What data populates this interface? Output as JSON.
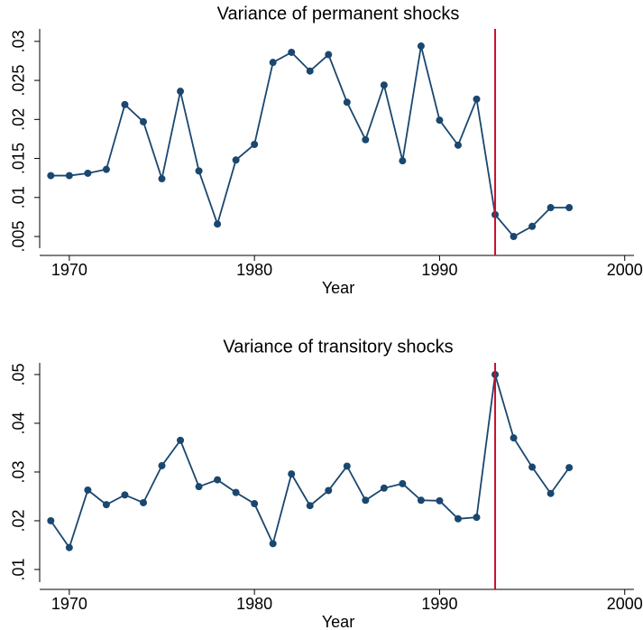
{
  "chart_data": [
    {
      "type": "line",
      "title": "Variance of permanent shocks",
      "xlabel": "Year",
      "xlim": [
        1968.4,
        2000.5
      ],
      "xticks": [
        1970,
        1980,
        1990,
        2000
      ],
      "ylim": [
        0.0035,
        0.0316
      ],
      "yticks": [
        {
          "value": 0.005,
          "label": ".005"
        },
        {
          "value": 0.01,
          "label": ".01"
        },
        {
          "value": 0.015,
          "label": ".015"
        },
        {
          "value": 0.02,
          "label": ".02"
        },
        {
          "value": 0.025,
          "label": ".025"
        },
        {
          "value": 0.03,
          "label": ".03"
        }
      ],
      "vline": 1993,
      "vline_color": "#c8102e",
      "series": [
        {
          "color": "#1a476f",
          "x": [
            1969,
            1970,
            1971,
            1972,
            1973,
            1974,
            1975,
            1976,
            1977,
            1978,
            1979,
            1980,
            1981,
            1982,
            1983,
            1984,
            1985,
            1986,
            1987,
            1988,
            1989,
            1990,
            1991,
            1992,
            1993,
            1994,
            1995,
            1996,
            1997
          ],
          "values": [
            0.0128,
            0.0128,
            0.0131,
            0.0136,
            0.0219,
            0.0197,
            0.0124,
            0.0236,
            0.0134,
            0.0066,
            0.0148,
            0.0168,
            0.0273,
            0.0286,
            0.0262,
            0.0283,
            0.0222,
            0.0174,
            0.0244,
            0.0147,
            0.0294,
            0.0199,
            0.0167,
            0.0226,
            0.0078,
            0.005,
            0.0063,
            0.0087,
            0.0087
          ]
        }
      ]
    },
    {
      "type": "line",
      "title": "Variance of transitory shocks",
      "xlabel": "Year",
      "xlim": [
        1968.4,
        2000.5
      ],
      "xticks": [
        1970,
        1980,
        1990,
        2000
      ],
      "ylim": [
        0.0074,
        0.0524
      ],
      "yticks": [
        {
          "value": 0.01,
          "label": ".01"
        },
        {
          "value": 0.02,
          "label": ".02"
        },
        {
          "value": 0.03,
          "label": ".03"
        },
        {
          "value": 0.04,
          "label": ".04"
        },
        {
          "value": 0.05,
          "label": ".05"
        }
      ],
      "vline": 1993,
      "vline_color": "#c8102e",
      "series": [
        {
          "color": "#1a476f",
          "x": [
            1969,
            1970,
            1971,
            1972,
            1973,
            1974,
            1975,
            1976,
            1977,
            1978,
            1979,
            1980,
            1981,
            1982,
            1983,
            1984,
            1985,
            1986,
            1987,
            1988,
            1989,
            1990,
            1991,
            1992,
            1993,
            1994,
            1995,
            1996,
            1997
          ],
          "values": [
            0.02,
            0.0145,
            0.0263,
            0.0233,
            0.0253,
            0.0237,
            0.0313,
            0.0365,
            0.027,
            0.0284,
            0.0258,
            0.0235,
            0.0153,
            0.0296,
            0.0231,
            0.0262,
            0.0312,
            0.0242,
            0.0267,
            0.0276,
            0.0242,
            0.0241,
            0.0204,
            0.0207,
            0.05,
            0.037,
            0.031,
            0.0256,
            0.0309
          ]
        }
      ]
    }
  ]
}
